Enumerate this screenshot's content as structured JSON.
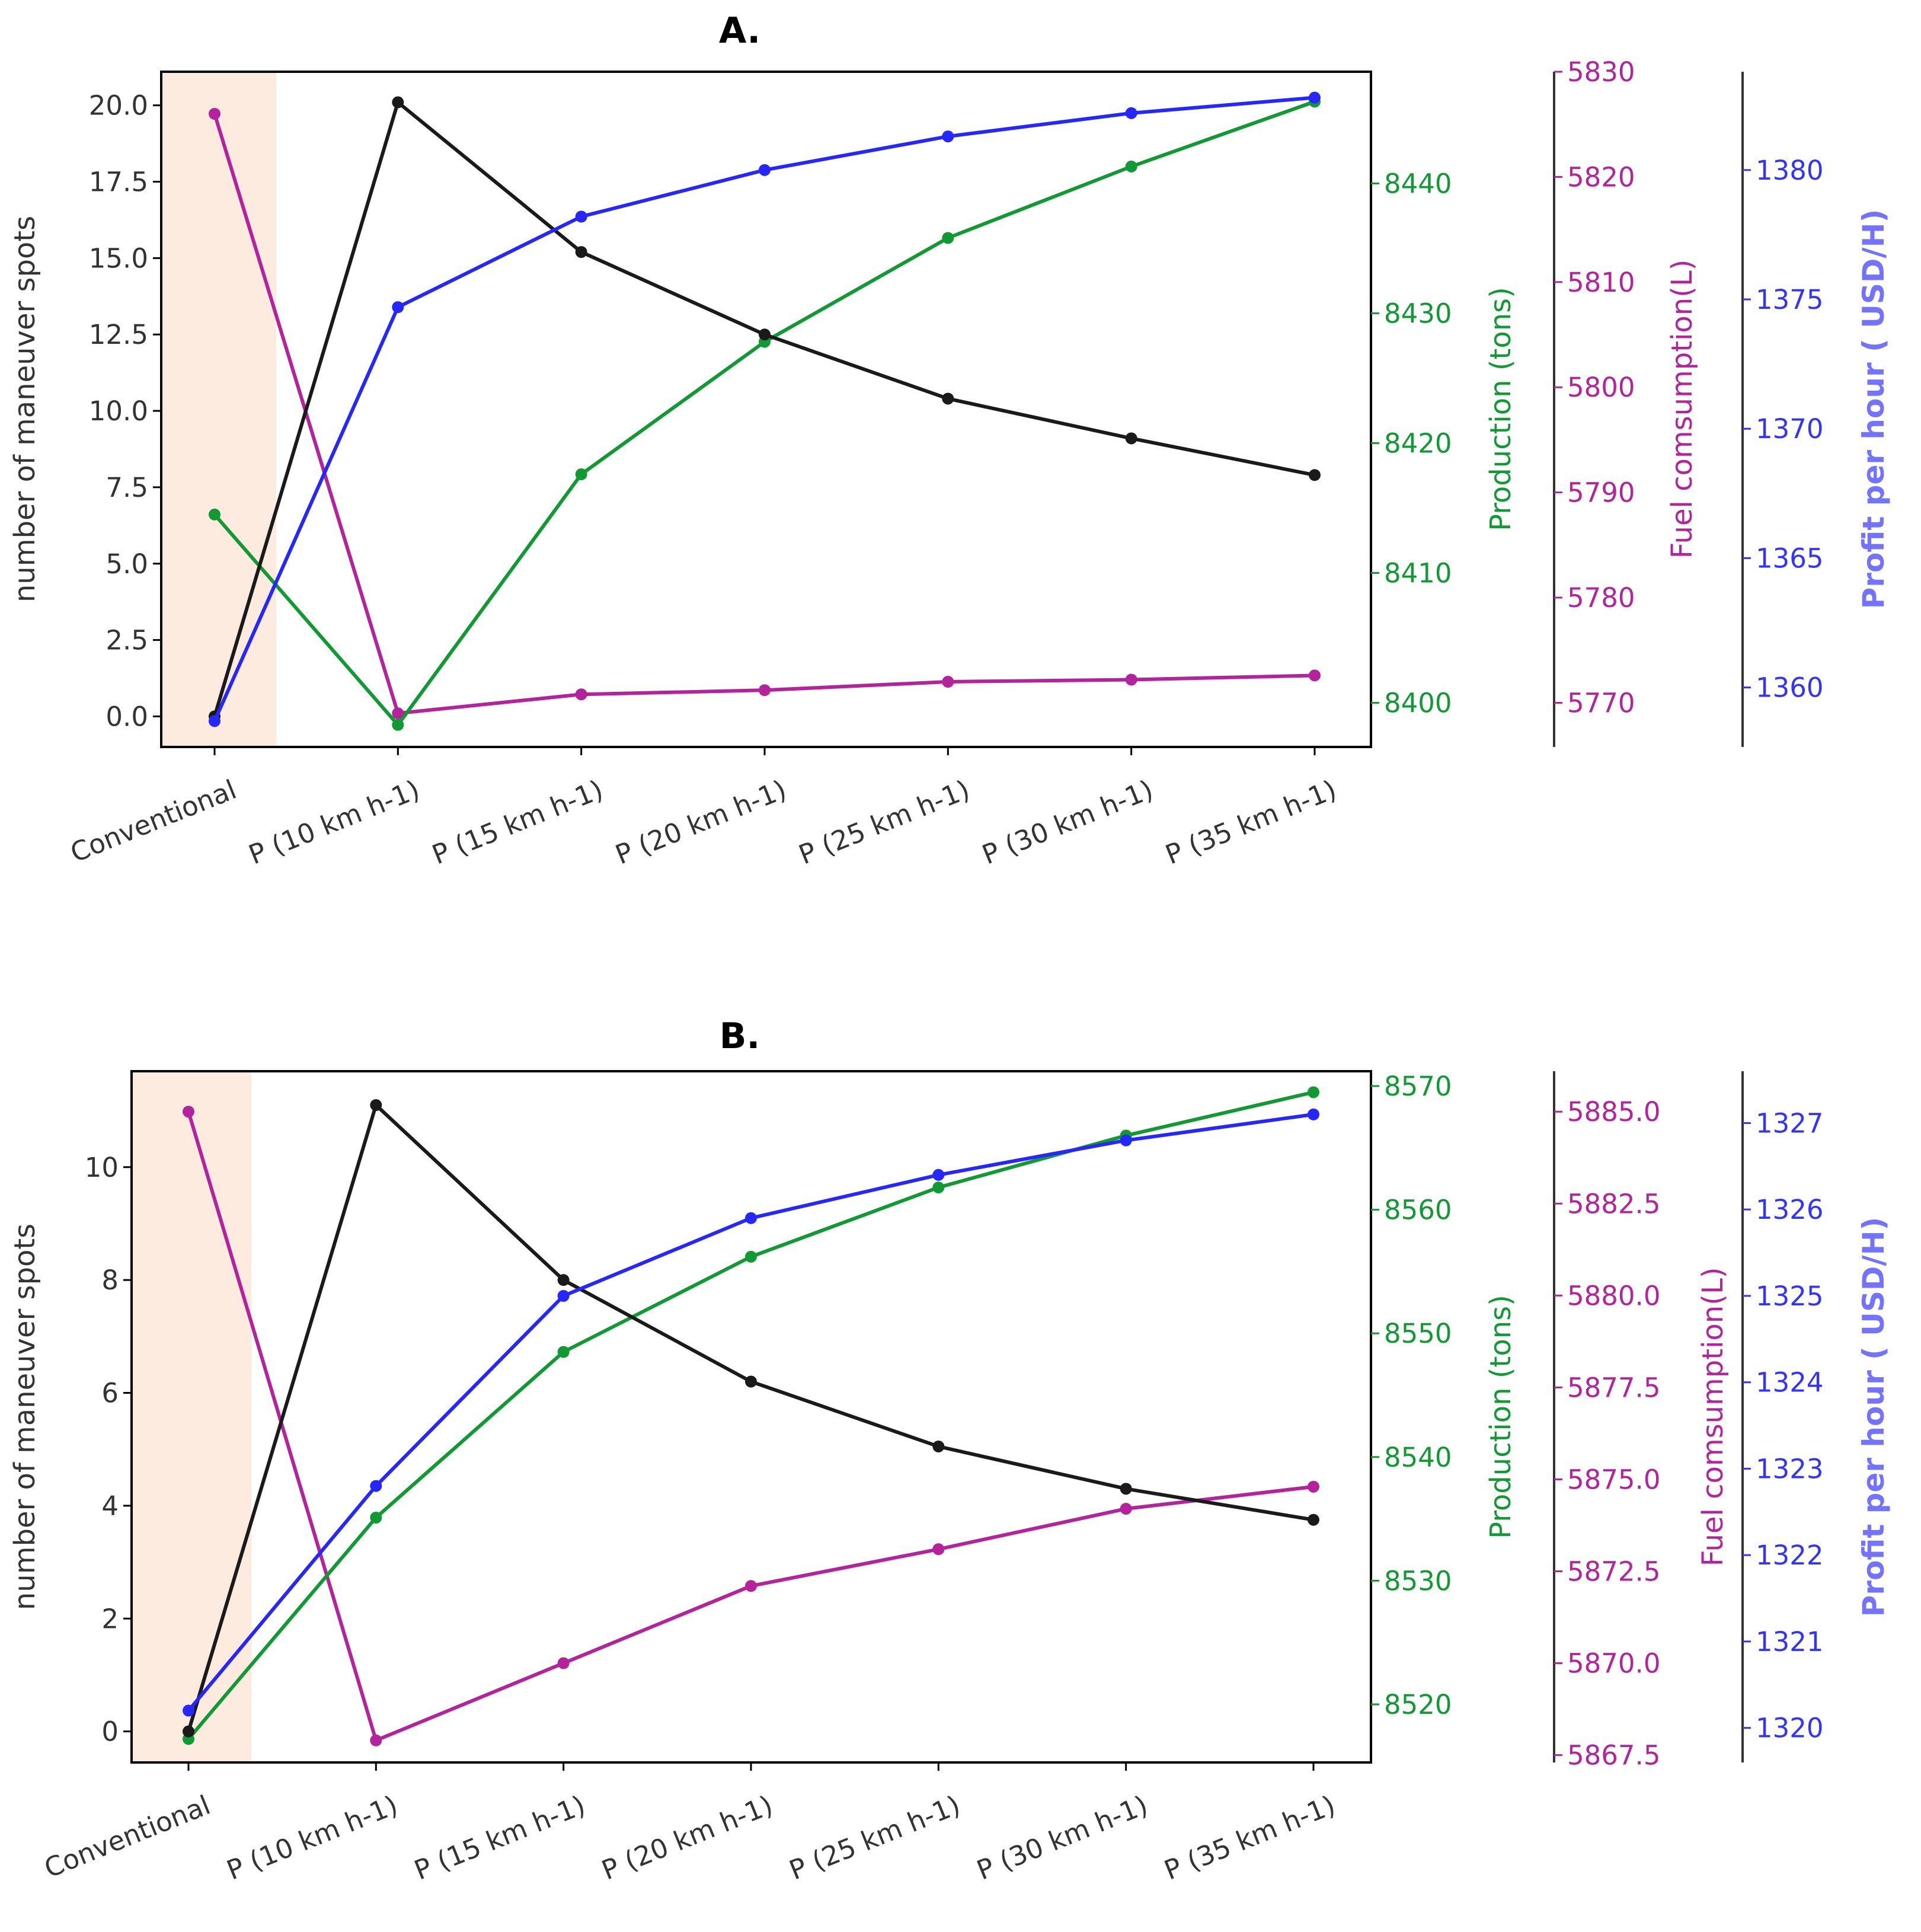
{
  "chart_data": [
    {
      "type": "line",
      "title": "A.",
      "categories": [
        "Conventional",
        "P (10 km h-1)",
        "P (15 km h-1)",
        "P (20 km h-1)",
        "P (25 km h-1)",
        "P (30 km h-1)",
        "P (35 km h-1)"
      ],
      "highlight_category": "Conventional",
      "colors": {
        "maneuver": "#1a1a1a",
        "production": "#119933",
        "fuel": "#b3239b",
        "profit": "#2626ff",
        "highlight": "#fdebe0"
      },
      "axes": {
        "maneuver": {
          "label": "number of maneuver spots",
          "ticks": [
            "0.0",
            "2.5",
            "5.0",
            "7.5",
            "10.0",
            "12.5",
            "15.0",
            "17.5",
            "20.0"
          ],
          "lim": [
            -1.0,
            21.1
          ]
        },
        "production": {
          "label": "Production (tons)",
          "ticks": [
            "8400",
            "8410",
            "8420",
            "8430",
            "8440"
          ],
          "lim": [
            8396.6,
            8448.6
          ]
        },
        "fuel": {
          "label": "Fuel comsumption(L)",
          "ticks": [
            "5770",
            "5780",
            "5790",
            "5800",
            "5810",
            "5820",
            "5830"
          ],
          "lim": [
            5765.8,
            5830.0
          ]
        },
        "profit": {
          "label": "Profit per hour ( USD/H)",
          "ticks": [
            "1360",
            "1365",
            "1370",
            "1375",
            "1380"
          ],
          "lim": [
            1357.7,
            1383.8
          ]
        }
      },
      "series": [
        {
          "name": "Number of maneuver spots",
          "axis": "maneuver",
          "values": [
            0,
            20.1,
            15.2,
            12.5,
            10.4,
            9.1,
            7.9
          ]
        },
        {
          "name": "Production (tons)",
          "axis": "production",
          "values": [
            8414.5,
            8398.3,
            8417.6,
            8427.8,
            8435.8,
            8441.3,
            8446.3
          ]
        },
        {
          "name": "Fuel consumption (L)",
          "axis": "fuel",
          "values": [
            5826.0,
            5769.0,
            5770.8,
            5771.2,
            5772.0,
            5772.2,
            5772.6
          ]
        },
        {
          "name": "Profit per hour (USD/H)",
          "axis": "profit",
          "values": [
            1358.7,
            1374.7,
            1378.2,
            1380.0,
            1381.3,
            1382.2,
            1382.8
          ]
        }
      ]
    },
    {
      "type": "line",
      "title": "B.",
      "categories": [
        "Conventional",
        "P (10 km h-1)",
        "P (15 km h-1)",
        "P (20 km h-1)",
        "P (25 km h-1)",
        "P (30 km h-1)",
        "P (35 km h-1)"
      ],
      "highlight_category": "Conventional",
      "colors": {
        "maneuver": "#1a1a1a",
        "production": "#119933",
        "fuel": "#b3239b",
        "profit": "#2626ff",
        "highlight": "#fdebe0"
      },
      "axes": {
        "maneuver": {
          "label": "number of maneuver spots",
          "ticks": [
            "0",
            "2",
            "4",
            "6",
            "8",
            "10"
          ],
          "lim": [
            -0.55,
            11.7
          ]
        },
        "production": {
          "label": "Production (tons)",
          "ticks": [
            "8520",
            "8530",
            "8540",
            "8550",
            "8560",
            "8570"
          ],
          "lim": [
            8515.3,
            8571.2
          ]
        },
        "fuel": {
          "label": "Fuel comsumption(L)",
          "ticks": [
            "5867.5",
            "5870.0",
            "5872.5",
            "5875.0",
            "5877.5",
            "5880.0",
            "5882.5",
            "5885.0"
          ],
          "lim": [
            5867.3,
            5886.1
          ]
        },
        "profit": {
          "label": "Profit per hour ( USD/H)",
          "ticks": [
            "1320",
            "1321",
            "1322",
            "1323",
            "1324",
            "1325",
            "1326",
            "1327"
          ],
          "lim": [
            1319.6,
            1327.6
          ]
        }
      },
      "series": [
        {
          "name": "Number of maneuver spots",
          "axis": "maneuver",
          "values": [
            0,
            11.1,
            8.0,
            6.2,
            5.05,
            4.3,
            3.75
          ]
        },
        {
          "name": "Production (tons)",
          "axis": "production",
          "values": [
            8517.2,
            8535.1,
            8548.5,
            8556.2,
            8561.8,
            8566.0,
            8569.5
          ]
        },
        {
          "name": "Fuel consumption (L)",
          "axis": "fuel",
          "values": [
            5885.0,
            5867.9,
            5870.0,
            5872.1,
            5873.1,
            5874.2,
            5874.8
          ]
        },
        {
          "name": "Profit per hour (USD/H)",
          "axis": "profit",
          "values": [
            1320.2,
            1322.8,
            1325.0,
            1325.9,
            1326.4,
            1326.8,
            1327.1
          ]
        }
      ]
    }
  ]
}
